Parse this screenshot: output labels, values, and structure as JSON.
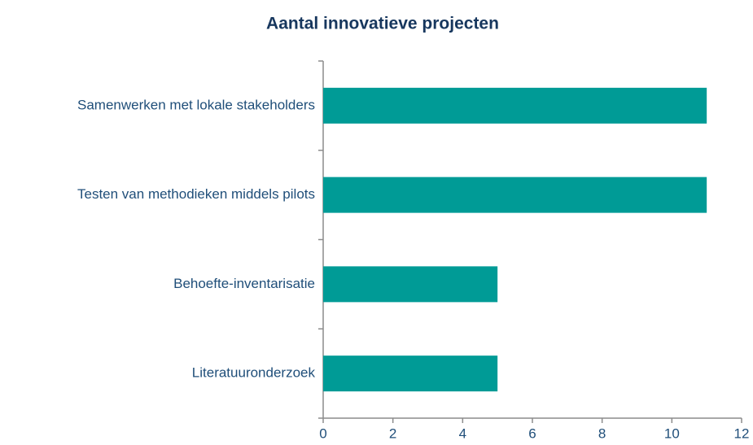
{
  "chart_data": {
    "type": "barh",
    "title": "Aantal innovatieve projecten",
    "categories": [
      "Samenwerken met lokale stakeholders",
      "Testen van methodieken middels pilots",
      "Behoefte-inventarisatie",
      "Literatuuronderzoek"
    ],
    "values": [
      11,
      11,
      5,
      5
    ],
    "color": "#009b96",
    "xlim": [
      0,
      12
    ],
    "xticks": [
      0,
      2,
      4,
      6,
      8,
      10,
      12
    ],
    "grid": false
  }
}
